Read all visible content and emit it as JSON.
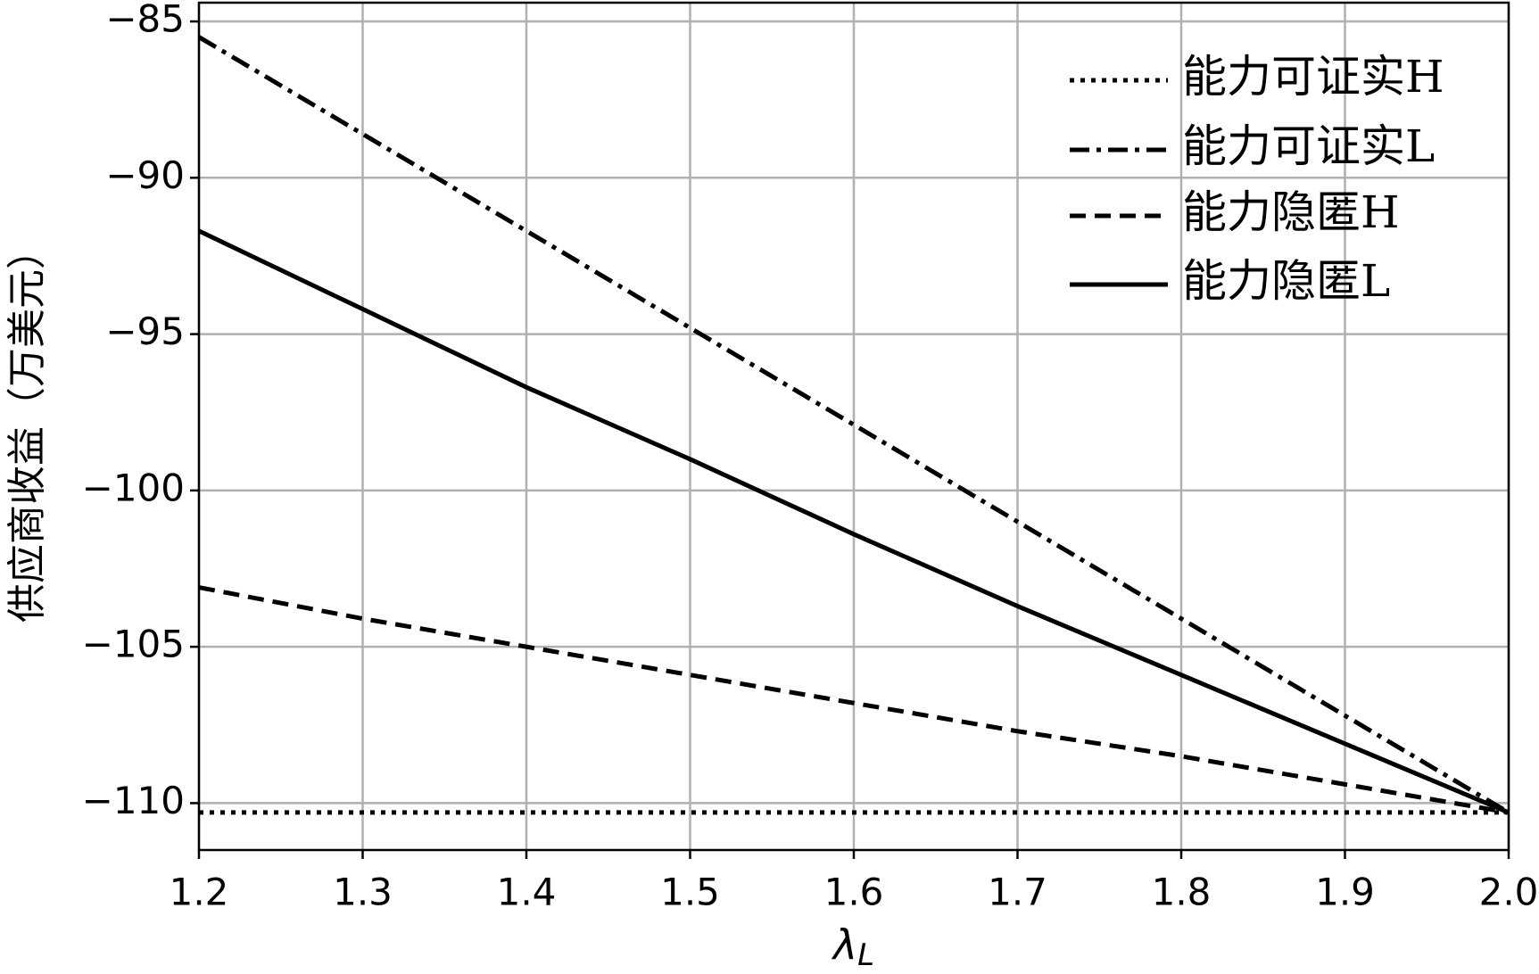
{
  "chart_data": {
    "type": "line",
    "y_label": "供应商收益（万美元）",
    "x_label": "λ",
    "x_label_subscript": "L",
    "x": [
      1.2,
      1.3,
      1.4,
      1.5,
      1.6,
      1.7,
      1.8,
      1.9,
      2.0
    ],
    "series": [
      {
        "name": "能力可证实H",
        "color": "#000000",
        "dash": "dotted",
        "values": [
          -110.3,
          -110.3,
          -110.3,
          -110.3,
          -110.3,
          -110.3,
          -110.3,
          -110.3,
          -110.3
        ]
      },
      {
        "name": "能力可证实L",
        "color": "#000000",
        "dash": "dashdot",
        "values": [
          -85.5,
          -88.6,
          -91.7,
          -94.8,
          -97.9,
          -101.0,
          -104.1,
          -107.2,
          -110.3
        ]
      },
      {
        "name": "能力隐匿H",
        "color": "#000000",
        "dash": "dashed",
        "values": [
          -103.1,
          -104.1,
          -105.0,
          -105.9,
          -106.8,
          -107.7,
          -108.5,
          -109.4,
          -110.3
        ]
      },
      {
        "name": "能力隐匿L",
        "color": "#000000",
        "dash": "solid",
        "values": [
          -91.7,
          -94.2,
          -96.7,
          -99.0,
          -101.4,
          -103.7,
          -105.9,
          -108.1,
          -110.3
        ]
      }
    ],
    "xlim": [
      1.2,
      2.0
    ],
    "xticks": [
      1.2,
      1.3,
      1.4,
      1.5,
      1.6,
      1.7,
      1.8,
      1.9,
      {
        "value": 2.0,
        "label": "2.0"
      }
    ],
    "ylim": [
      -111.5,
      -84.4
    ],
    "yticks": [
      {
        "value": -110,
        "label": "−110"
      },
      {
        "value": -105,
        "label": "−105"
      },
      {
        "value": -100,
        "label": "−100"
      },
      {
        "value": -95,
        "label": "−95"
      },
      {
        "value": -90,
        "label": "−90"
      },
      {
        "value": -85,
        "label": "−85"
      }
    ],
    "grid": true,
    "legend": "upper-right"
  }
}
